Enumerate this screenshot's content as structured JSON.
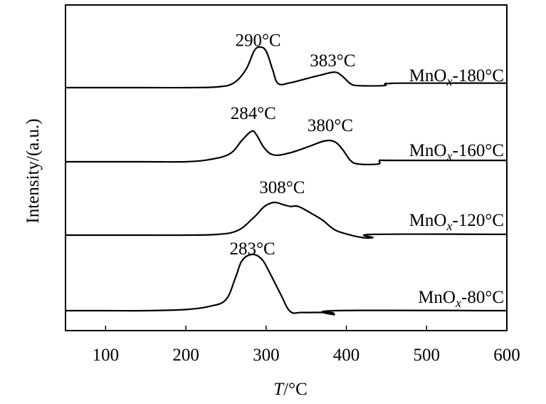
{
  "chart_data": {
    "type": "line",
    "title": "",
    "xlabel_symbol": "T",
    "xlabel_unit": "/°C",
    "ylabel": "Intensity/(a.u.)",
    "xlim": [
      50,
      600
    ],
    "xticks": [
      "100",
      "200",
      "300",
      "400",
      "500",
      "600"
    ],
    "y_ticks_shown": false,
    "grid": false,
    "series": [
      {
        "name_prefix": "MnO",
        "name_sub": "x",
        "name_suffix": "-180°C",
        "baseline": 0.0,
        "peak_labels": [
          {
            "text": "290°C",
            "x": 290,
            "y": 1.03
          },
          {
            "text": "383°C",
            "x": 383,
            "y": 0.53
          }
        ],
        "points": [
          [
            50,
            0
          ],
          [
            150,
            0
          ],
          [
            200,
            0
          ],
          [
            240,
            0.02
          ],
          [
            260,
            0.12
          ],
          [
            275,
            0.45
          ],
          [
            285,
            0.9
          ],
          [
            292,
            1.0
          ],
          [
            300,
            0.9
          ],
          [
            308,
            0.45
          ],
          [
            315,
            0.1
          ],
          [
            330,
            0.12
          ],
          [
            350,
            0.22
          ],
          [
            370,
            0.32
          ],
          [
            386,
            0.38
          ],
          [
            395,
            0.28
          ],
          [
            405,
            0.1
          ],
          [
            415,
            0.05
          ],
          [
            447,
            0.05
          ],
          [
            448,
            0.1
          ],
          [
            455,
            0.1
          ],
          [
            470,
            0.11
          ],
          [
            600,
            0.11
          ]
        ]
      },
      {
        "name_prefix": "MnO",
        "name_sub": "x",
        "name_suffix": "-160°C",
        "baseline": 0.0,
        "peak_labels": [
          {
            "text": "284°C",
            "x": 284,
            "y": 0.95
          },
          {
            "text": "380°C",
            "x": 380,
            "y": 0.68
          }
        ],
        "points": [
          [
            50,
            0
          ],
          [
            150,
            0
          ],
          [
            200,
            0
          ],
          [
            230,
            0.05
          ],
          [
            255,
            0.18
          ],
          [
            270,
            0.48
          ],
          [
            282,
            0.68
          ],
          [
            288,
            0.6
          ],
          [
            298,
            0.3
          ],
          [
            310,
            0.15
          ],
          [
            330,
            0.2
          ],
          [
            355,
            0.35
          ],
          [
            372,
            0.46
          ],
          [
            385,
            0.45
          ],
          [
            395,
            0.28
          ],
          [
            405,
            0.03
          ],
          [
            415,
            -0.05
          ],
          [
            440,
            -0.05
          ],
          [
            442,
            0.03
          ],
          [
            460,
            0.03
          ],
          [
            600,
            0.03
          ]
        ]
      },
      {
        "name_prefix": "MnO",
        "name_sub": "x",
        "name_suffix": "-120°C",
        "baseline": 0.0,
        "peak_labels": [
          {
            "text": "308°C",
            "x": 320,
            "y": 1.05
          }
        ],
        "points": [
          [
            50,
            0
          ],
          [
            150,
            0
          ],
          [
            200,
            0
          ],
          [
            240,
            0.02
          ],
          [
            265,
            0.12
          ],
          [
            285,
            0.45
          ],
          [
            298,
            0.72
          ],
          [
            310,
            0.82
          ],
          [
            322,
            0.76
          ],
          [
            330,
            0.72
          ],
          [
            340,
            0.72
          ],
          [
            355,
            0.56
          ],
          [
            370,
            0.38
          ],
          [
            385,
            0.14
          ],
          [
            400,
            0.03
          ],
          [
            420,
            -0.06
          ],
          [
            433,
            -0.06
          ],
          [
            435,
            0.02
          ],
          [
            600,
            0.02
          ]
        ]
      },
      {
        "name_prefix": "MnO",
        "name_sub": "x",
        "name_suffix": "-80°C",
        "baseline": 0.0,
        "peak_labels": [
          {
            "text": "283°C",
            "x": 283,
            "y": 1.52
          }
        ],
        "points": [
          [
            50,
            0
          ],
          [
            100,
            0
          ],
          [
            150,
            0
          ],
          [
            200,
            0.03
          ],
          [
            230,
            0.12
          ],
          [
            250,
            0.3
          ],
          [
            262,
            0.9
          ],
          [
            270,
            1.35
          ],
          [
            283,
            1.52
          ],
          [
            295,
            1.38
          ],
          [
            305,
            1.0
          ],
          [
            318,
            0.45
          ],
          [
            330,
            -0.02
          ],
          [
            345,
            -0.05
          ],
          [
            380,
            -0.05
          ],
          [
            385,
            -0.11
          ],
          [
            387,
            0.0
          ],
          [
            600,
            0.0
          ]
        ]
      }
    ]
  }
}
